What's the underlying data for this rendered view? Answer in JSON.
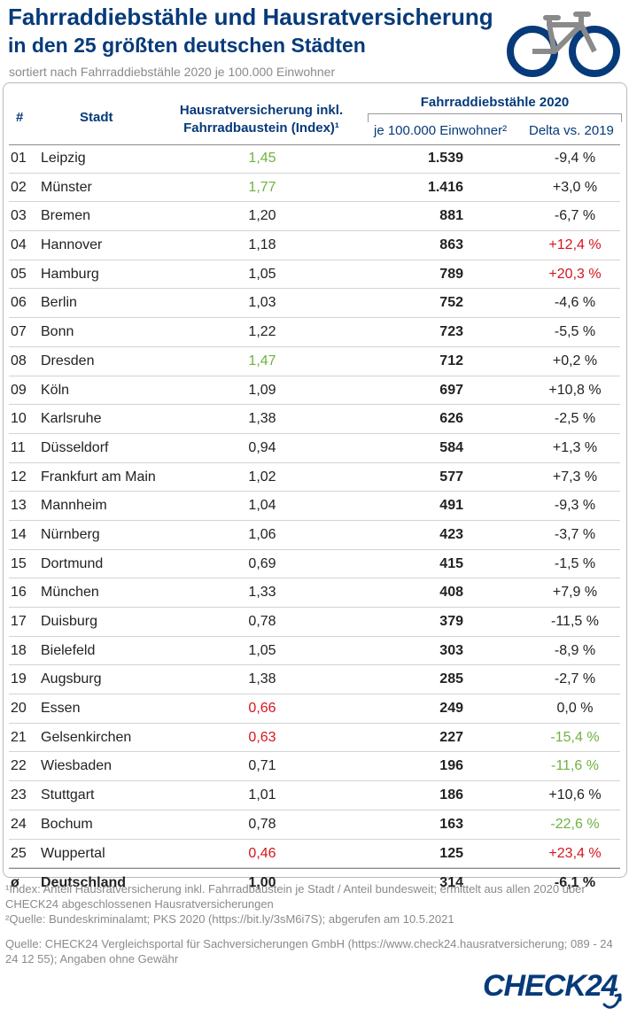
{
  "title": "Fahrraddiebstähle und Hausratversicherung",
  "subtitle": "in den 25 größten deutschen Städten",
  "sorted_note": "sortiert nach Fahrraddiebstähle 2020 je 100.000 Einwohner",
  "header": {
    "num": "#",
    "city": "Stadt",
    "index_line1": "Hausratversicherung inkl.",
    "index_line2": "Fahrradbaustein (Index)¹",
    "group": "Fahrraddiebstähle 2020",
    "per100k": "je 100.000 Einwohner²",
    "delta": "Delta vs. 2019"
  },
  "colors": {
    "primary": "#063a7a",
    "green": "#6db33f",
    "red": "#d7141e",
    "grey": "#8a8a8a"
  },
  "rows": [
    {
      "num": "01",
      "city": "Leipzig",
      "index": "1,45",
      "index_color": "green",
      "thefts": "1.539",
      "delta": "-9,4 %",
      "delta_color": ""
    },
    {
      "num": "02",
      "city": "Münster",
      "index": "1,77",
      "index_color": "green",
      "thefts": "1.416",
      "delta": "+3,0 %",
      "delta_color": ""
    },
    {
      "num": "03",
      "city": "Bremen",
      "index": "1,20",
      "index_color": "",
      "thefts": "881",
      "delta": "-6,7 %",
      "delta_color": ""
    },
    {
      "num": "04",
      "city": "Hannover",
      "index": "1,18",
      "index_color": "",
      "thefts": "863",
      "delta": "+12,4 %",
      "delta_color": "red"
    },
    {
      "num": "05",
      "city": "Hamburg",
      "index": "1,05",
      "index_color": "",
      "thefts": "789",
      "delta": "+20,3 %",
      "delta_color": "red"
    },
    {
      "num": "06",
      "city": "Berlin",
      "index": "1,03",
      "index_color": "",
      "thefts": "752",
      "delta": "-4,6 %",
      "delta_color": ""
    },
    {
      "num": "07",
      "city": "Bonn",
      "index": "1,22",
      "index_color": "",
      "thefts": "723",
      "delta": "-5,5 %",
      "delta_color": ""
    },
    {
      "num": "08",
      "city": "Dresden",
      "index": "1,47",
      "index_color": "green",
      "thefts": "712",
      "delta": "+0,2 %",
      "delta_color": ""
    },
    {
      "num": "09",
      "city": "Köln",
      "index": "1,09",
      "index_color": "",
      "thefts": "697",
      "delta": "+10,8 %",
      "delta_color": ""
    },
    {
      "num": "10",
      "city": "Karlsruhe",
      "index": "1,38",
      "index_color": "",
      "thefts": "626",
      "delta": "-2,5 %",
      "delta_color": ""
    },
    {
      "num": "11",
      "city": "Düsseldorf",
      "index": "0,94",
      "index_color": "",
      "thefts": "584",
      "delta": "+1,3 %",
      "delta_color": ""
    },
    {
      "num": "12",
      "city": "Frankfurt am Main",
      "index": "1,02",
      "index_color": "",
      "thefts": "577",
      "delta": "+7,3 %",
      "delta_color": ""
    },
    {
      "num": "13",
      "city": "Mannheim",
      "index": "1,04",
      "index_color": "",
      "thefts": "491",
      "delta": "-9,3 %",
      "delta_color": ""
    },
    {
      "num": "14",
      "city": "Nürnberg",
      "index": "1,06",
      "index_color": "",
      "thefts": "423",
      "delta": "-3,7 %",
      "delta_color": ""
    },
    {
      "num": "15",
      "city": "Dortmund",
      "index": "0,69",
      "index_color": "",
      "thefts": "415",
      "delta": "-1,5 %",
      "delta_color": ""
    },
    {
      "num": "16",
      "city": "München",
      "index": "1,33",
      "index_color": "",
      "thefts": "408",
      "delta": "+7,9 %",
      "delta_color": ""
    },
    {
      "num": "17",
      "city": "Duisburg",
      "index": "0,78",
      "index_color": "",
      "thefts": "379",
      "delta": "-11,5 %",
      "delta_color": ""
    },
    {
      "num": "18",
      "city": "Bielefeld",
      "index": "1,05",
      "index_color": "",
      "thefts": "303",
      "delta": "-8,9 %",
      "delta_color": ""
    },
    {
      "num": "19",
      "city": "Augsburg",
      "index": "1,38",
      "index_color": "",
      "thefts": "285",
      "delta": "-2,7 %",
      "delta_color": ""
    },
    {
      "num": "20",
      "city": "Essen",
      "index": "0,66",
      "index_color": "red",
      "thefts": "249",
      "delta": "0,0 %",
      "delta_color": ""
    },
    {
      "num": "21",
      "city": "Gelsenkirchen",
      "index": "0,63",
      "index_color": "red",
      "thefts": "227",
      "delta": "-15,4 %",
      "delta_color": "green"
    },
    {
      "num": "22",
      "city": "Wiesbaden",
      "index": "0,71",
      "index_color": "",
      "thefts": "196",
      "delta": "-11,6 %",
      "delta_color": "green"
    },
    {
      "num": "23",
      "city": "Stuttgart",
      "index": "1,01",
      "index_color": "",
      "thefts": "186",
      "delta": "+10,6 %",
      "delta_color": ""
    },
    {
      "num": "24",
      "city": "Bochum",
      "index": "0,78",
      "index_color": "",
      "thefts": "163",
      "delta": "-22,6 %",
      "delta_color": "green"
    },
    {
      "num": "25",
      "city": "Wuppertal",
      "index": "0,46",
      "index_color": "red",
      "thefts": "125",
      "delta": "+23,4 %",
      "delta_color": "red"
    }
  ],
  "total": {
    "num": "ø",
    "city": "Deutschland",
    "index": "1,00",
    "thefts": "314",
    "delta": "-6,1 %"
  },
  "footnotes": {
    "note1": "¹Index: Anteil Hausratversicherung inkl. Fahrradbaustein je Stadt / Anteil bundesweit; ermittelt aus allen 2020 über CHECK24 abgeschlossenen Hausratversicherungen",
    "note2": "²Quelle: Bundeskriminalamt; PKS 2020 (https://bit.ly/3sM6i7S); abgerufen am 10.5.2021",
    "source": "Quelle: CHECK24 Vergleichsportal für Sachversicherungen GmbH (https://www.check24.hausratversicherung; 089 - 24 24 12 55); Angaben ohne Gewähr"
  },
  "logo_text": "CHECK24",
  "icons": {
    "bike": "bicycle-icon"
  }
}
